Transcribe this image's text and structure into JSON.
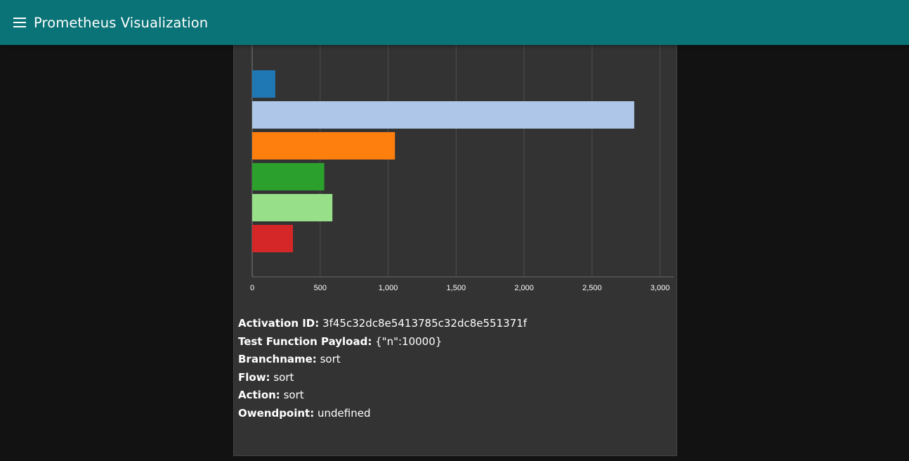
{
  "appbar": {
    "title": "Prometheus Visualization",
    "menu_icon": "hamburger-menu-icon",
    "color": "#0a7377"
  },
  "chart_data": {
    "type": "bar",
    "orientation": "horizontal",
    "values": [
      170,
      2810,
      1050,
      530,
      590,
      300
    ],
    "colors": [
      "#1f77b4",
      "#aec7e8",
      "#ff7f0e",
      "#2ca02c",
      "#98df8a",
      "#d62728"
    ],
    "xlim": [
      0,
      3100
    ],
    "x_ticks": [
      0,
      500,
      1000,
      1500,
      2000,
      2500,
      3000
    ],
    "x_tick_labels": [
      "0",
      "500",
      "1,000",
      "1,500",
      "2,000",
      "2,500",
      "3,000"
    ],
    "grid": true
  },
  "details": [
    {
      "label": "Activation ID:",
      "value": "3f45c32dc8e5413785c32dc8e551371f"
    },
    {
      "label": "Test Function Payload:",
      "value": "{\"n\":10000}"
    },
    {
      "label": "Branchname:",
      "value": "sort"
    },
    {
      "label": "Flow:",
      "value": "sort"
    },
    {
      "label": "Action:",
      "value": "sort"
    },
    {
      "label": "Owendpoint:",
      "value": "undefined"
    }
  ]
}
